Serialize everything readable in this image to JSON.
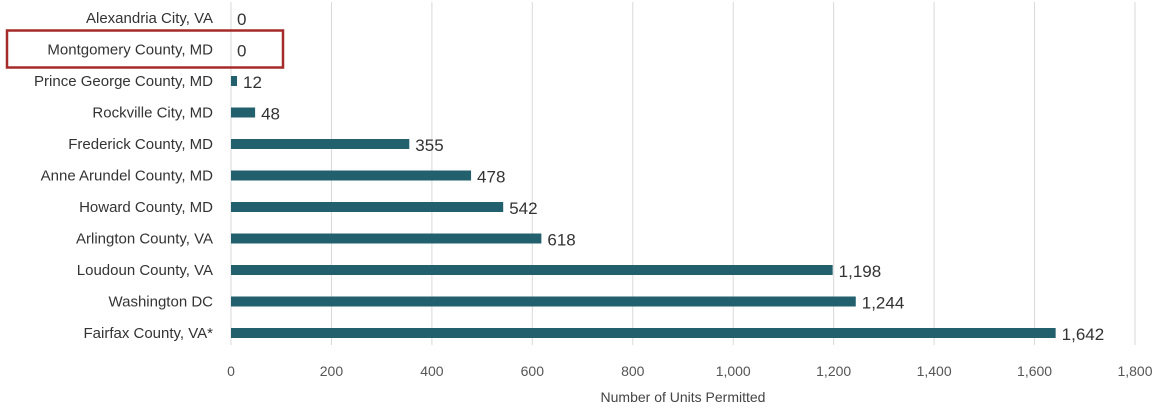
{
  "chart_data": {
    "type": "bar",
    "orientation": "horizontal",
    "categories": [
      "Alexandria City, VA",
      "Montgomery County, MD",
      "Prince George County, MD",
      "Rockville City, MD",
      "Frederick County, MD",
      "Anne Arundel County, MD",
      "Howard County, MD",
      "Arlington County, VA",
      "Loudoun County, VA",
      "Washington  DC",
      "Fairfax County, VA*"
    ],
    "values": [
      0,
      0,
      12,
      48,
      355,
      478,
      542,
      618,
      1198,
      1244,
      1642
    ],
    "value_labels": [
      "0",
      "0",
      "12",
      "48",
      "355",
      "478",
      "542",
      "618",
      "1,198",
      "1,244",
      "1,642"
    ],
    "xlabel": "Number of Units Permitted",
    "xlim": [
      0,
      1800
    ],
    "xticks": [
      0,
      200,
      400,
      600,
      800,
      1000,
      1200,
      1400,
      1600,
      1800
    ],
    "xtick_labels": [
      "0",
      "200",
      "400",
      "600",
      "800",
      "1,000",
      "1,200",
      "1,400",
      "1,600",
      "1,800"
    ],
    "grid": "vertical",
    "bar_color": "#22606e",
    "highlighted_category": "Montgomery County, MD",
    "highlight_color": "#a52a2a"
  }
}
